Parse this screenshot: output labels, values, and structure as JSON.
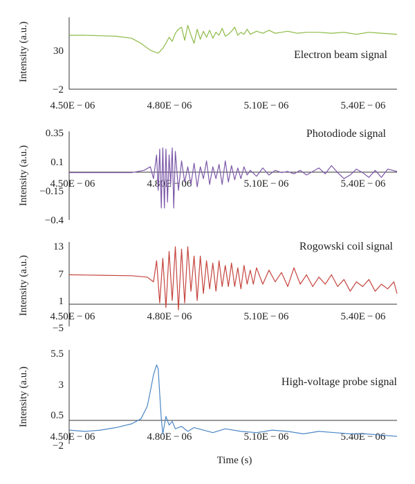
{
  "figure": {
    "xlabel": "Time (s)"
  },
  "chart_data": [
    {
      "type": "line",
      "title": "Electron beam signal",
      "ylabel": "Intensity (a.u.)",
      "xlabel": "",
      "xlim": [
        4.5e-06,
        5.55e-06
      ],
      "ylim": [
        -2,
        70
      ],
      "x_ticks": [
        "4.50E − 06",
        "4.80E − 06",
        "5.10E − 06",
        "5.40E − 06"
      ],
      "y_ticks": [
        "−2",
        "30"
      ],
      "color": "#8cba45",
      "series": [
        {
          "name": "Electron beam signal",
          "x": [
            4.5e-06,
            4.55e-06,
            4.6e-06,
            4.65e-06,
            4.7e-06,
            4.73e-06,
            4.76e-06,
            4.785e-06,
            4.8e-06,
            4.81e-06,
            4.82e-06,
            4.83e-06,
            4.84e-06,
            4.85e-06,
            4.86e-06,
            4.87e-06,
            4.88e-06,
            4.89e-06,
            4.9e-06,
            4.91e-06,
            4.92e-06,
            4.93e-06,
            4.94e-06,
            4.95e-06,
            4.96e-06,
            4.97e-06,
            4.98e-06,
            4.99e-06,
            5e-06,
            5.01e-06,
            5.02e-06,
            5.03e-06,
            5.04e-06,
            5.05e-06,
            5.06e-06,
            5.07e-06,
            5.08e-06,
            5.1e-06,
            5.12e-06,
            5.14e-06,
            5.16e-06,
            5.18e-06,
            5.2e-06,
            5.23e-06,
            5.26e-06,
            5.3e-06,
            5.34e-06,
            5.38e-06,
            5.42e-06,
            5.46e-06,
            5.5e-06,
            5.55e-06
          ],
          "y": [
            52,
            52,
            51.5,
            51,
            49,
            44,
            37,
            34,
            39,
            44,
            50,
            46,
            54,
            58,
            60,
            47,
            62,
            52,
            44,
            58,
            48,
            56,
            50,
            57,
            49,
            55,
            52,
            59,
            51,
            53,
            56,
            60,
            52,
            55,
            53,
            58,
            53,
            56,
            54,
            57,
            54,
            55,
            56,
            54,
            55,
            55,
            54,
            55,
            53,
            55,
            54,
            53
          ]
        }
      ]
    },
    {
      "type": "line",
      "title": "Photodiode signal",
      "ylabel": "Intensity (a.u.)",
      "xlabel": "",
      "xlim": [
        4.5e-06,
        5.55e-06
      ],
      "ylim": [
        -0.4,
        0.35
      ],
      "x_ticks": [
        "4.50E − 06",
        "4.80E − 06",
        "5.10E − 06",
        "5.40E − 06"
      ],
      "y_ticks": [
        "0.35",
        "0.1",
        "−0.15",
        "−0.4"
      ],
      "color": "#7b57a8",
      "series": [
        {
          "name": "Photodiode signal",
          "x": [
            4.5e-06,
            4.6e-06,
            4.7e-06,
            4.74e-06,
            4.76e-06,
            4.77e-06,
            4.78e-06,
            4.785e-06,
            4.79e-06,
            4.795e-06,
            4.8e-06,
            4.805e-06,
            4.81e-06,
            4.815e-06,
            4.82e-06,
            4.825e-06,
            4.83e-06,
            4.835e-06,
            4.84e-06,
            4.85e-06,
            4.86e-06,
            4.87e-06,
            4.88e-06,
            4.89e-06,
            4.9e-06,
            4.91e-06,
            4.92e-06,
            4.93e-06,
            4.94e-06,
            4.95e-06,
            4.96e-06,
            4.97e-06,
            4.98e-06,
            4.99e-06,
            5e-06,
            5.01e-06,
            5.02e-06,
            5.03e-06,
            5.04e-06,
            5.05e-06,
            5.06e-06,
            5.07e-06,
            5.08e-06,
            5.1e-06,
            5.12e-06,
            5.14e-06,
            5.16e-06,
            5.18e-06,
            5.2e-06,
            5.22e-06,
            5.24e-06,
            5.26e-06,
            5.28e-06,
            5.3e-06,
            5.32e-06,
            5.34e-06,
            5.36e-06,
            5.38e-06,
            5.4e-06,
            5.42e-06,
            5.44e-06,
            5.46e-06,
            5.48e-06,
            5.5e-06,
            5.52e-06,
            5.55e-06
          ],
          "y": [
            0.0,
            0.0,
            0.0,
            0.02,
            0.05,
            -0.05,
            0.15,
            -0.15,
            0.2,
            -0.3,
            0.21,
            -0.3,
            0.2,
            -0.25,
            0.15,
            -0.1,
            0.21,
            -0.3,
            0.18,
            -0.15,
            0.1,
            -0.08,
            0.05,
            -0.1,
            0.08,
            -0.12,
            0.05,
            -0.05,
            0.1,
            -0.1,
            0.05,
            -0.05,
            0.07,
            -0.1,
            0.1,
            -0.08,
            0.06,
            -0.06,
            0.04,
            -0.05,
            0.05,
            -0.02,
            0.02,
            -0.03,
            0.04,
            -0.02,
            0.02,
            0.0,
            0.01,
            -0.01,
            0.02,
            -0.02,
            0.01,
            0.04,
            -0.01,
            0.06,
            0.0,
            -0.05,
            -0.02,
            0.03,
            0.0,
            -0.04,
            0.02,
            -0.04,
            0.03,
            0.01
          ]
        }
      ]
    },
    {
      "type": "line",
      "title": "Rogowski coil signal",
      "ylabel": "Intensity (a.u.)",
      "xlabel": "",
      "xlim": [
        4.5e-06,
        5.55e-06
      ],
      "ylim": [
        -5,
        13
      ],
      "x_ticks": [
        "4.50E − 06",
        "4.80E − 06",
        "5.10E − 06",
        "5.40E − 06"
      ],
      "y_ticks": [
        "13",
        "7",
        "1",
        "−5"
      ],
      "color": "#c4433d",
      "series": [
        {
          "name": "Rogowski coil signal",
          "x": [
            4.5e-06,
            4.6e-06,
            4.7e-06,
            4.75e-06,
            4.77e-06,
            4.78e-06,
            4.79e-06,
            4.8e-06,
            4.81e-06,
            4.82e-06,
            4.83e-06,
            4.84e-06,
            4.85e-06,
            4.86e-06,
            4.87e-06,
            4.88e-06,
            4.89e-06,
            4.9e-06,
            4.91e-06,
            4.92e-06,
            4.93e-06,
            4.94e-06,
            4.95e-06,
            4.96e-06,
            4.97e-06,
            4.98e-06,
            4.99e-06,
            5e-06,
            5.01e-06,
            5.02e-06,
            5.03e-06,
            5.04e-06,
            5.05e-06,
            5.06e-06,
            5.07e-06,
            5.08e-06,
            5.09e-06,
            5.1e-06,
            5.12e-06,
            5.14e-06,
            5.16e-06,
            5.18e-06,
            5.2e-06,
            5.22e-06,
            5.24e-06,
            5.26e-06,
            5.28e-06,
            5.3e-06,
            5.32e-06,
            5.34e-06,
            5.36e-06,
            5.38e-06,
            5.4e-06,
            5.42e-06,
            5.44e-06,
            5.46e-06,
            5.48e-06,
            5.5e-06,
            5.52e-06,
            5.54e-06,
            5.55e-06
          ],
          "y": [
            6.0,
            5.9,
            5.8,
            5.5,
            4.5,
            9.0,
            0.0,
            9.5,
            -1.0,
            11.0,
            0.5,
            12.0,
            -1.5,
            11.5,
            0.0,
            12.0,
            2.5,
            10.0,
            0.5,
            10.0,
            2.0,
            9.0,
            3.0,
            8.5,
            2.5,
            9.0,
            3.5,
            8.0,
            3.5,
            8.5,
            3.5,
            7.5,
            3.0,
            8.0,
            4.0,
            7.0,
            4.0,
            7.5,
            4.0,
            7.0,
            4.5,
            6.5,
            3.5,
            7.5,
            4.0,
            6.0,
            3.5,
            5.5,
            4.0,
            6.0,
            3.5,
            5.0,
            2.5,
            4.5,
            3.5,
            5.0,
            2.5,
            4.0,
            3.0,
            4.5,
            2.0
          ]
        }
      ]
    },
    {
      "type": "line",
      "title": "High-voltage probe signal",
      "ylabel": "Intensity (a.u.)",
      "xlabel": "Time (s)",
      "xlim": [
        4.5e-06,
        5.55e-06
      ],
      "ylim": [
        -2,
        5.5
      ],
      "x_ticks": [
        "4.50E − 06",
        "4.80E − 06",
        "5.10E − 06",
        "5.40E − 06"
      ],
      "y_ticks": [
        "5.5",
        "3",
        "0.5",
        "−2"
      ],
      "color": "#4a86c5",
      "series": [
        {
          "name": "High-voltage probe signal",
          "x": [
            4.5e-06,
            4.55e-06,
            4.6e-06,
            4.65e-06,
            4.7e-06,
            4.73e-06,
            4.75e-06,
            4.76e-06,
            4.77e-06,
            4.78e-06,
            4.785e-06,
            4.79e-06,
            4.795e-06,
            4.8e-06,
            4.81e-06,
            4.82e-06,
            4.83e-06,
            4.84e-06,
            4.86e-06,
            4.88e-06,
            4.9e-06,
            4.93e-06,
            4.96e-06,
            5e-06,
            5.05e-06,
            5.1e-06,
            5.15e-06,
            5.2e-06,
            5.25e-06,
            5.3e-06,
            5.35e-06,
            5.4e-06,
            5.45e-06,
            5.5e-06,
            5.55e-06
          ],
          "y": [
            -0.9,
            -1.0,
            -0.9,
            -0.7,
            -0.4,
            0.0,
            1.0,
            2.2,
            3.5,
            4.3,
            4.0,
            2.0,
            0.0,
            -1.2,
            0.2,
            -0.5,
            -0.2,
            -0.8,
            -0.6,
            -1.0,
            -0.7,
            -0.9,
            -1.1,
            -0.8,
            -1.0,
            -1.1,
            -0.9,
            -1.0,
            -1.2,
            -1.0,
            -1.1,
            -1.2,
            -1.2,
            -1.3,
            -1.4
          ]
        }
      ]
    }
  ]
}
